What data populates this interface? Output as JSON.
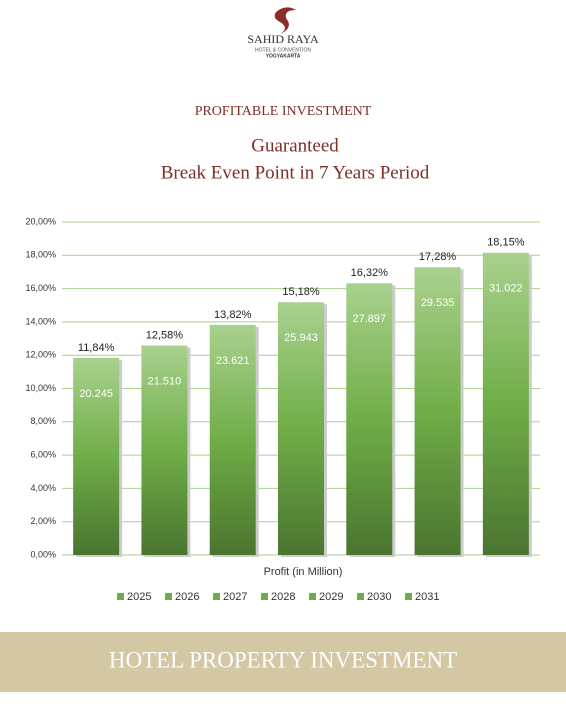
{
  "header": {
    "brand": "SAHID RAYA",
    "tagline": "HOTEL & CONVENTION",
    "city": "YOGYAKARTA"
  },
  "heading": "PROFITABLE INVESTMENT",
  "chart_data": {
    "type": "bar",
    "title": "Guaranteed",
    "subtitle": "Break Even Point in 7 Years Period",
    "x_label": "Profit (in Million)",
    "ylim": [
      0,
      20
    ],
    "yticks": [
      {
        "value": 0,
        "label": "0,00%"
      },
      {
        "value": 2,
        "label": "2,00%"
      },
      {
        "value": 4,
        "label": "4,00%"
      },
      {
        "value": 6,
        "label": "6,00%"
      },
      {
        "value": 8,
        "label": "8,00%"
      },
      {
        "value": 10,
        "label": "10,00%"
      },
      {
        "value": 12,
        "label": "12,00%"
      },
      {
        "value": 14,
        "label": "14,00%"
      },
      {
        "value": 16,
        "label": "16,00%"
      },
      {
        "value": 18,
        "label": "18,00%"
      },
      {
        "value": 20,
        "label": "20,00%"
      }
    ],
    "grid": true,
    "legend": "bottom",
    "series": [
      {
        "name": "2025",
        "color": "#70ad47",
        "values": [
          11.84
        ],
        "value_labels": [
          "11,84%"
        ],
        "profits": [
          20245
        ],
        "profit_labels": [
          "20.245"
        ]
      },
      {
        "name": "2026",
        "color": "#70ad47",
        "values": [
          12.58
        ],
        "value_labels": [
          "12,58%"
        ],
        "profits": [
          21510
        ],
        "profit_labels": [
          "21.510"
        ]
      },
      {
        "name": "2027",
        "color": "#70ad47",
        "values": [
          13.82
        ],
        "value_labels": [
          "13,82%"
        ],
        "profits": [
          23621
        ],
        "profit_labels": [
          "23.621"
        ]
      },
      {
        "name": "2028",
        "color": "#70ad47",
        "values": [
          15.18
        ],
        "value_labels": [
          "15,18%"
        ],
        "profits": [
          25943
        ],
        "profit_labels": [
          "25.943"
        ]
      },
      {
        "name": "2029",
        "color": "#70ad47",
        "values": [
          16.32
        ],
        "value_labels": [
          "16,32%"
        ],
        "profits": [
          27897
        ],
        "profit_labels": [
          "27.897"
        ]
      },
      {
        "name": "2030",
        "color": "#70ad47",
        "values": [
          17.28
        ],
        "value_labels": [
          "17,28%"
        ],
        "profits": [
          29535
        ],
        "profit_labels": [
          "29.535"
        ]
      },
      {
        "name": "2031",
        "color": "#70ad47",
        "values": [
          18.15
        ],
        "value_labels": [
          "18,15%"
        ],
        "profits": [
          31022
        ],
        "profit_labels": [
          "31.022"
        ]
      }
    ]
  },
  "footer": "HOTEL PROPERTY INVESTMENT"
}
